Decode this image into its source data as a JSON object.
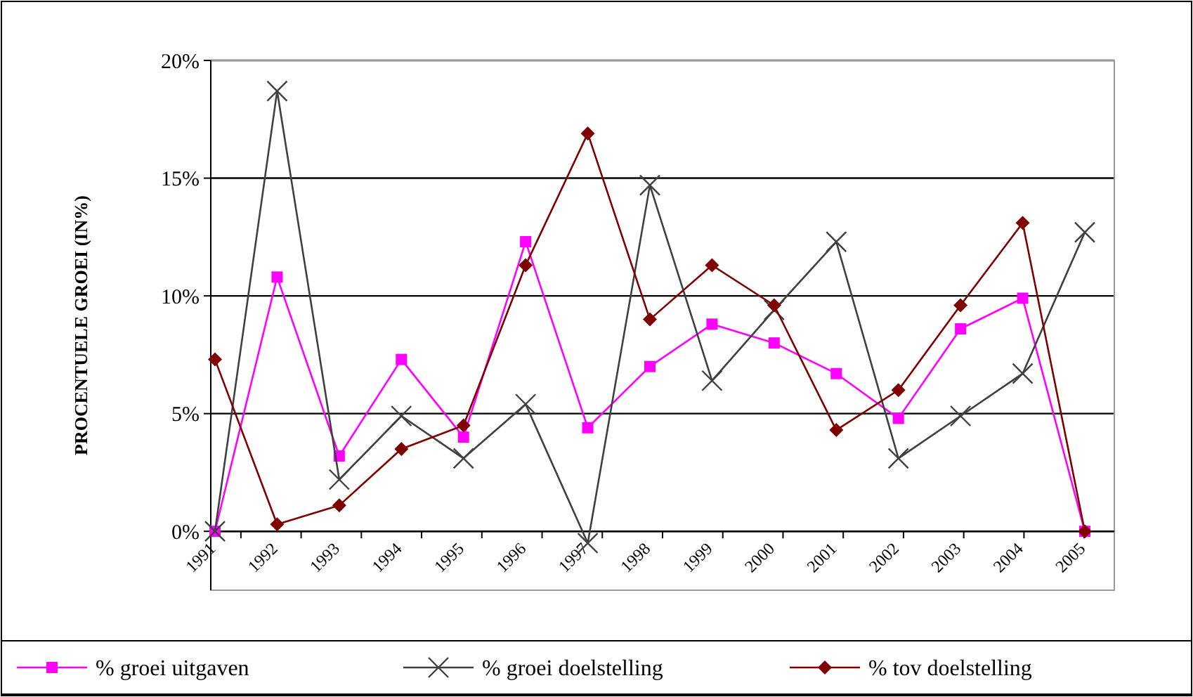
{
  "chart_data": {
    "type": "line",
    "ylabel": "PROCENTUELE GROEI (IN%)",
    "categories": [
      "1991",
      "1992",
      "1993",
      "1994",
      "1995",
      "1996",
      "1997",
      "1998",
      "1999",
      "2000",
      "2001",
      "2002",
      "2003",
      "2004",
      "2005"
    ],
    "series": [
      {
        "name": "% groei uitgaven",
        "color": "#ff00ff",
        "marker": "square",
        "values": [
          0,
          10.8,
          3.2,
          7.3,
          4.0,
          12.3,
          4.4,
          7.0,
          8.8,
          8.0,
          6.7,
          4.8,
          8.6,
          9.9,
          0
        ]
      },
      {
        "name": "% groei doelstelling",
        "color": "#404040",
        "marker": "cross",
        "values": [
          0,
          18.7,
          2.2,
          4.9,
          3.1,
          5.4,
          -0.5,
          14.7,
          6.4,
          9.4,
          12.3,
          3.1,
          4.9,
          6.7,
          12.7
        ]
      },
      {
        "name": "% tov doelstelling",
        "color": "#800000",
        "marker": "diamond",
        "values": [
          7.3,
          0.3,
          1.1,
          3.5,
          4.5,
          11.3,
          16.9,
          9.0,
          11.3,
          9.6,
          4.3,
          6.0,
          9.6,
          13.1,
          0
        ]
      }
    ],
    "ylim": [
      -2.5,
      20
    ],
    "yticks": [
      {
        "value": 0,
        "label": "0%"
      },
      {
        "value": 5,
        "label": "5%"
      },
      {
        "value": 10,
        "label": "10%"
      },
      {
        "value": 15,
        "label": "15%"
      },
      {
        "value": 20,
        "label": "20%"
      }
    ],
    "grid": "y",
    "legend": "bottom",
    "line_style": "solid"
  }
}
